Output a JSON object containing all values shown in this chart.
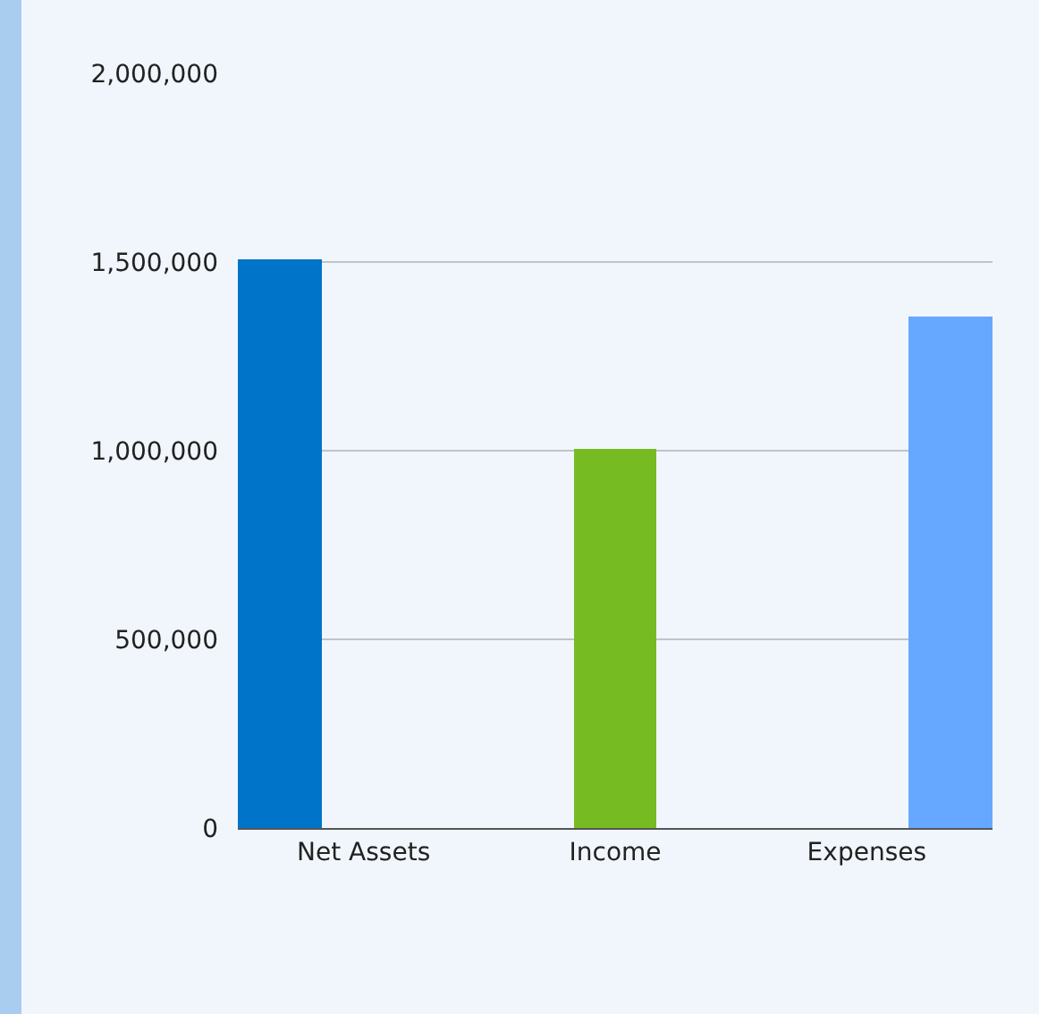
{
  "chart_data": {
    "type": "bar",
    "categories": [
      "Net Assets",
      "Income",
      "Expenses"
    ],
    "series": [
      {
        "color": "#0074c8",
        "values": [
          1507000,
          null,
          null
        ]
      },
      {
        "color": "#77bb22",
        "values": [
          null,
          1005000,
          null
        ]
      },
      {
        "color": "#66a8ff",
        "values": [
          null,
          null,
          1355000
        ]
      }
    ],
    "ylim": [
      0,
      2000000
    ],
    "yticks": [
      {
        "value": 0,
        "label": "0"
      },
      {
        "value": 500000,
        "label": "500,000"
      },
      {
        "value": 1000000,
        "label": "1,000,000"
      },
      {
        "value": 1500000,
        "label": "1,500,000"
      },
      {
        "value": 2000000,
        "label": "2,000,000"
      }
    ],
    "grid": "y",
    "legend": false
  }
}
